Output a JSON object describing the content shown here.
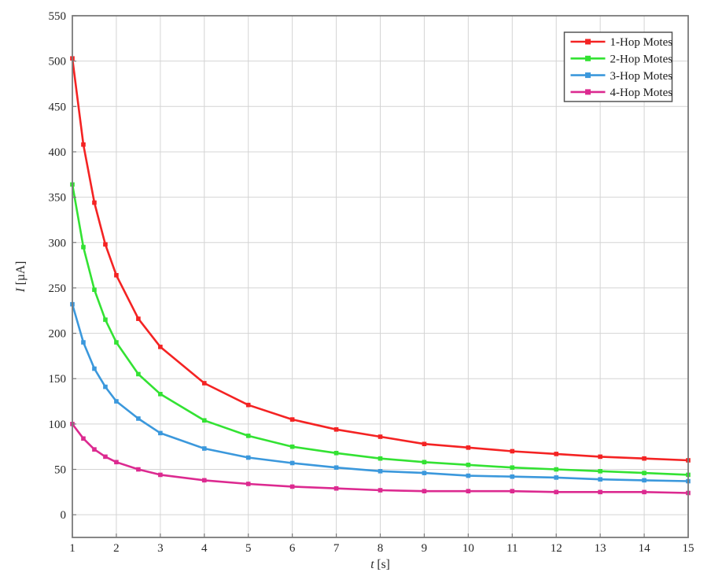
{
  "chart_data": {
    "type": "line",
    "title": "",
    "xlabel": "t [s]",
    "xlabel_var": "t",
    "xlabel_unit": "[s]",
    "ylabel": "I [µA]",
    "ylabel_var": "I",
    "ylabel_unit": "[µA]",
    "xlim": [
      1,
      15
    ],
    "ylim": [
      -25,
      550
    ],
    "x_ticks": [
      1,
      2,
      3,
      4,
      5,
      6,
      7,
      8,
      9,
      10,
      11,
      12,
      13,
      14,
      15
    ],
    "y_ticks": [
      0,
      50,
      100,
      150,
      200,
      250,
      300,
      350,
      400,
      450,
      500,
      550
    ],
    "grid": true,
    "legend": {
      "position": "top-right",
      "border": true,
      "entries": [
        "1-Hop Motes",
        "2-Hop Motes",
        "3-Hop Motes",
        "4-Hop Motes"
      ]
    },
    "x": [
      1,
      1.25,
      1.5,
      1.75,
      2,
      2.5,
      3,
      4,
      5,
      6,
      7,
      8,
      9,
      10,
      11,
      12,
      13,
      14,
      15
    ],
    "series": [
      {
        "name": "1-Hop Motes",
        "color": "#f42323",
        "marker": "square",
        "values": [
          503,
          408,
          344,
          298,
          264,
          216,
          185,
          145,
          121,
          105,
          94,
          86,
          78,
          74,
          70,
          67,
          64,
          62,
          60
        ]
      },
      {
        "name": "2-Hop Motes",
        "color": "#33e233",
        "marker": "square",
        "values": [
          364,
          295,
          248,
          215,
          190,
          155,
          133,
          104,
          87,
          75,
          68,
          62,
          58,
          55,
          52,
          50,
          48,
          46,
          44
        ]
      },
      {
        "name": "3-Hop Motes",
        "color": "#3b98dc",
        "marker": "square",
        "values": [
          232,
          190,
          161,
          141,
          125,
          106,
          90,
          73,
          63,
          57,
          52,
          48,
          46,
          43,
          42,
          41,
          39,
          38,
          37
        ]
      },
      {
        "name": "4-Hop Motes",
        "color": "#dc2a90",
        "marker": "square",
        "values": [
          100,
          84,
          72,
          64,
          58,
          50,
          44,
          38,
          34,
          31,
          29,
          27,
          26,
          26,
          26,
          25,
          25,
          25,
          24
        ]
      }
    ],
    "colors": {
      "background": "#ffffff",
      "grid": "#d4d4d4",
      "axis": "#7a7a7a",
      "tick_text": "#262626",
      "legend_border": "#555555"
    }
  }
}
